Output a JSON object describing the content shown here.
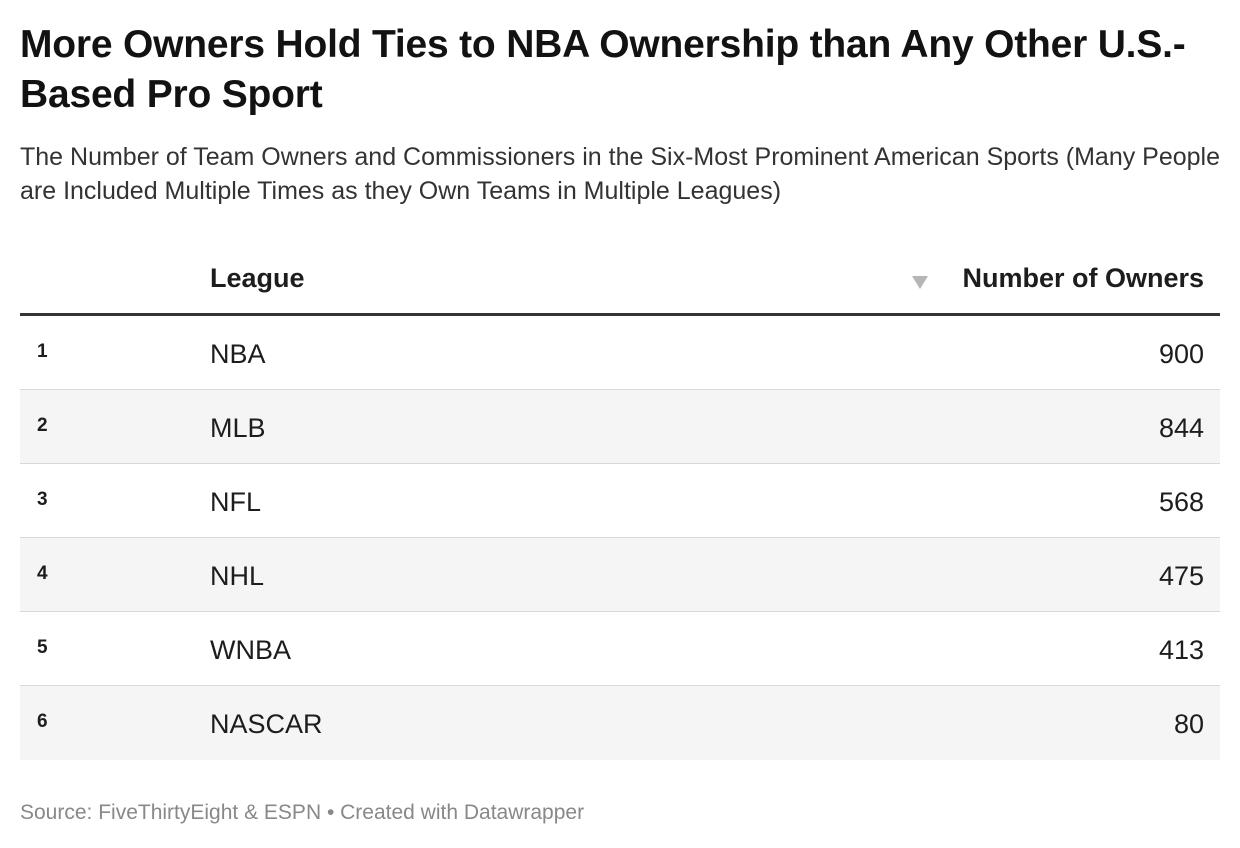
{
  "title": "More Owners Hold Ties to NBA Ownership than Any Other U.S.-Based Pro Sport",
  "subtitle": "The Number of Team Owners and Commissioners in the Six-Most Prominent American Sports (Many People are Included Multiple Times as they Own Teams in Multiple Leagues)",
  "footer": "Source: FiveThirtyEight & ESPN • Created with Datawrapper",
  "table": {
    "columns": [
      "League",
      "Number of Owners"
    ],
    "sort_icon": "sort-descending-icon"
  },
  "chart_data": {
    "type": "table",
    "title": "More Owners Hold Ties to NBA Ownership than Any Other U.S.-Based Pro Sport",
    "columns": [
      "League",
      "Number of Owners"
    ],
    "rows": [
      {
        "rank": "1",
        "league": "NBA",
        "owners": "900"
      },
      {
        "rank": "2",
        "league": "MLB",
        "owners": "844"
      },
      {
        "rank": "3",
        "league": "NFL",
        "owners": "568"
      },
      {
        "rank": "4",
        "league": "NHL",
        "owners": "475"
      },
      {
        "rank": "5",
        "league": "WNBA",
        "owners": "413"
      },
      {
        "rank": "6",
        "league": "NASCAR",
        "owners": "80"
      }
    ]
  },
  "colors": {
    "text": "#1d1d1d",
    "alt_row": "#f5f5f5",
    "header_rule": "#333333",
    "footer_text": "#888888"
  }
}
